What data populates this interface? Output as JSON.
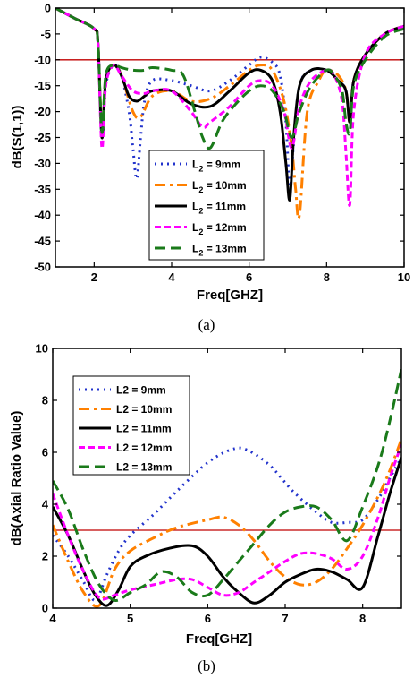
{
  "chart_data": [
    {
      "type": "line",
      "caption": "(a)",
      "xlabel": "Freq[GHZ]",
      "ylabel": "dB(S(1,1))",
      "xlim": [
        1,
        10
      ],
      "ylim": [
        -50,
        0
      ],
      "xticks": [
        2,
        4,
        6,
        8,
        10
      ],
      "yticks": [
        0,
        -5,
        -10,
        -15,
        -20,
        -25,
        -30,
        -35,
        -40,
        -45,
        -50
      ],
      "reference_line": {
        "y": -10,
        "color": "#c00000"
      },
      "legend": {
        "placement": "center",
        "entries_html": true
      },
      "series": [
        {
          "name": "L",
          "sub": "2",
          "suffix": " = 9mm",
          "color": "#2233cc",
          "dash": "2,5",
          "x": [
            1,
            1.5,
            2,
            2.1,
            2.2,
            2.3,
            2.5,
            2.7,
            2.9,
            3.0,
            3.1,
            3.2,
            3.3,
            3.5,
            4,
            4.5,
            5,
            5.5,
            6,
            6.3,
            6.6,
            6.8,
            6.95,
            7.05,
            7.15,
            7.3,
            7.6,
            8,
            8.3,
            8.5,
            8.6,
            8.7,
            9,
            9.5,
            10
          ],
          "y": [
            0,
            -2,
            -4,
            -7,
            -25,
            -15,
            -11,
            -13,
            -20,
            -27,
            -33,
            -25,
            -18,
            -14,
            -14,
            -15,
            -16,
            -14,
            -11,
            -9.5,
            -10.5,
            -13,
            -22,
            -35,
            -26,
            -15,
            -12,
            -12,
            -14,
            -16,
            -22,
            -14,
            -9,
            -5,
            -3.5
          ]
        },
        {
          "name": "L",
          "sub": "2",
          "suffix": " = 10mm",
          "color": "#ff8000",
          "dash": "12,5,3,5",
          "x": [
            1,
            1.5,
            2,
            2.1,
            2.2,
            2.3,
            2.5,
            2.7,
            3.0,
            3.2,
            3.5,
            4,
            4.5,
            5,
            5.5,
            6,
            6.3,
            6.6,
            6.9,
            7.1,
            7.2,
            7.3,
            7.5,
            7.8,
            8,
            8.3,
            8.5,
            8.6,
            8.7,
            9,
            9.5,
            10
          ],
          "y": [
            0,
            -2,
            -4,
            -7,
            -24,
            -14,
            -11,
            -13,
            -20,
            -21,
            -17,
            -16,
            -18,
            -17.5,
            -15,
            -12,
            -11,
            -12,
            -18,
            -27,
            -35,
            -40,
            -20,
            -14,
            -12,
            -13,
            -16,
            -22,
            -14,
            -9,
            -5,
            -3.5
          ]
        },
        {
          "name": "L",
          "sub": "2",
          "suffix": " = 11mm",
          "color": "#000000",
          "dash": "",
          "x": [
            1,
            1.5,
            2,
            2.1,
            2.2,
            2.3,
            2.5,
            2.7,
            2.9,
            3.1,
            3.3,
            3.5,
            4,
            4.5,
            5,
            5.5,
            6,
            6.3,
            6.6,
            6.8,
            6.95,
            7.05,
            7.15,
            7.3,
            7.6,
            8,
            8.3,
            8.5,
            8.6,
            8.7,
            9,
            9.5,
            10
          ],
          "y": [
            0,
            -2,
            -4,
            -7,
            -25,
            -14,
            -11,
            -13,
            -17,
            -18,
            -17,
            -16,
            -16,
            -18.5,
            -19,
            -16,
            -12.5,
            -12,
            -14,
            -20,
            -30,
            -37,
            -25,
            -15,
            -12,
            -12,
            -14,
            -16,
            -22,
            -14,
            -9,
            -5,
            -3.5
          ]
        },
        {
          "name": "L",
          "sub": "2",
          "suffix": " = 12mm",
          "color": "#ff00ff",
          "dash": "7,4",
          "x": [
            1,
            1.5,
            2,
            2.1,
            2.2,
            2.3,
            2.5,
            2.7,
            3.0,
            3.3,
            3.5,
            4,
            4.5,
            4.8,
            5,
            5.5,
            6,
            6.3,
            6.6,
            6.9,
            7.1,
            7.3,
            7.6,
            8,
            8.2,
            8.4,
            8.5,
            8.6,
            8.7,
            9,
            9.5,
            10
          ],
          "y": [
            0,
            -2,
            -4,
            -7,
            -27,
            -15,
            -11,
            -13,
            -16,
            -16.5,
            -16,
            -16,
            -20,
            -23,
            -22,
            -19,
            -15,
            -14,
            -15,
            -20,
            -27,
            -19,
            -14,
            -12,
            -13,
            -18,
            -28,
            -38,
            -20,
            -9,
            -5,
            -3.5
          ]
        },
        {
          "name": "L",
          "sub": "2",
          "suffix": " = 13mm",
          "color": "#1a7a1a",
          "dash": "12,6",
          "x": [
            1,
            1.5,
            2,
            2.1,
            2.2,
            2.3,
            2.5,
            2.7,
            3.0,
            3.3,
            3.5,
            4,
            4.3,
            4.6,
            4.8,
            5,
            5.3,
            5.6,
            6,
            6.3,
            6.6,
            6.9,
            7.1,
            7.3,
            7.6,
            8,
            8.2,
            8.4,
            8.5,
            8.6,
            8.7,
            9,
            9.5,
            10
          ],
          "y": [
            0,
            -2,
            -4,
            -7,
            -24,
            -13,
            -11,
            -11.5,
            -12,
            -12,
            -11.5,
            -12,
            -13,
            -20,
            -25,
            -27,
            -22,
            -19,
            -16,
            -15,
            -16,
            -20,
            -25,
            -20,
            -15,
            -12,
            -13,
            -16,
            -22,
            -24,
            -15,
            -10,
            -5.5,
            -4
          ]
        }
      ]
    },
    {
      "type": "line",
      "caption": "(b)",
      "xlabel": "Freq[GHZ]",
      "ylabel": "dB(Axial Ratio Value)",
      "xlim": [
        4,
        8.5
      ],
      "ylim": [
        0,
        10
      ],
      "xticks": [
        4,
        5,
        6,
        7,
        8
      ],
      "yticks": [
        0,
        2,
        4,
        6,
        8,
        10
      ],
      "reference_line": {
        "y": 3,
        "color": "#c00000"
      },
      "legend": {
        "placement": "top-left"
      },
      "series": [
        {
          "name": "L2 = 9mm",
          "color": "#2233cc",
          "dash": "2,5",
          "x": [
            4,
            4.2,
            4.4,
            4.55,
            4.7,
            4.85,
            5.0,
            5.3,
            5.6,
            6.0,
            6.3,
            6.5,
            6.8,
            7.1,
            7.4,
            7.6,
            7.8,
            8.0,
            8.2,
            8.35,
            8.5
          ],
          "y": [
            2.8,
            2.0,
            1.0,
            0.3,
            1.3,
            2.2,
            2.8,
            3.6,
            4.5,
            5.6,
            6.1,
            6.1,
            5.5,
            4.5,
            3.7,
            3.3,
            3.3,
            3.4,
            4.2,
            5.0,
            5.8
          ]
        },
        {
          "name": "L2 = 10mm",
          "color": "#ff8000",
          "dash": "12,5,3,5",
          "x": [
            4,
            4.2,
            4.4,
            4.6,
            4.8,
            5.0,
            5.3,
            5.6,
            6.0,
            6.2,
            6.4,
            6.6,
            6.8,
            7.0,
            7.2,
            7.4,
            7.6,
            7.8,
            8.0,
            8.2,
            8.35,
            8.5
          ],
          "y": [
            3.2,
            1.8,
            0.6,
            0.1,
            1.5,
            2.2,
            2.7,
            3.1,
            3.4,
            3.5,
            3.2,
            2.6,
            1.8,
            1.2,
            0.9,
            1.0,
            1.5,
            2.3,
            3.2,
            4.3,
            5.3,
            6.5
          ]
        },
        {
          "name": "L2 = 11mm",
          "color": "#000000",
          "dash": "",
          "x": [
            4,
            4.2,
            4.4,
            4.55,
            4.7,
            4.85,
            5.0,
            5.2,
            5.5,
            5.8,
            6.0,
            6.2,
            6.4,
            6.6,
            6.8,
            7.0,
            7.2,
            7.4,
            7.6,
            7.8,
            8.0,
            8.2,
            8.35,
            8.5
          ],
          "y": [
            3.9,
            2.8,
            1.4,
            0.5,
            0.1,
            0.7,
            1.6,
            2.0,
            2.3,
            2.4,
            2.0,
            1.2,
            0.6,
            0.2,
            0.5,
            1.0,
            1.3,
            1.5,
            1.4,
            1.1,
            0.8,
            2.8,
            4.4,
            5.8
          ]
        },
        {
          "name": "L2 = 12mm",
          "color": "#ff00ff",
          "dash": "7,4",
          "x": [
            4,
            4.2,
            4.4,
            4.6,
            4.8,
            5.0,
            5.3,
            5.6,
            5.8,
            6.0,
            6.2,
            6.4,
            6.6,
            6.8,
            7.0,
            7.2,
            7.4,
            7.6,
            7.8,
            8.0,
            8.2,
            8.35,
            8.5
          ],
          "y": [
            4.4,
            2.8,
            1.4,
            0.4,
            0.5,
            0.7,
            0.9,
            1.1,
            1.1,
            0.8,
            0.5,
            0.6,
            1.0,
            1.4,
            1.8,
            2.1,
            2.1,
            1.9,
            1.5,
            2.0,
            3.5,
            5.0,
            6.3
          ]
        },
        {
          "name": "L2 = 13mm",
          "color": "#1a7a1a",
          "dash": "12,6",
          "x": [
            4,
            4.2,
            4.4,
            4.6,
            4.8,
            5.0,
            5.2,
            5.4,
            5.6,
            5.8,
            6.0,
            6.2,
            6.4,
            6.6,
            6.8,
            7.0,
            7.2,
            7.4,
            7.6,
            7.8,
            8.0,
            8.2,
            8.35,
            8.5
          ],
          "y": [
            4.9,
            3.8,
            2.2,
            0.9,
            0.3,
            0.6,
            0.9,
            1.4,
            1.2,
            0.6,
            0.5,
            1.1,
            1.8,
            2.5,
            3.2,
            3.7,
            3.9,
            3.9,
            3.4,
            2.6,
            3.9,
            5.5,
            7.2,
            9.2
          ]
        }
      ]
    }
  ]
}
